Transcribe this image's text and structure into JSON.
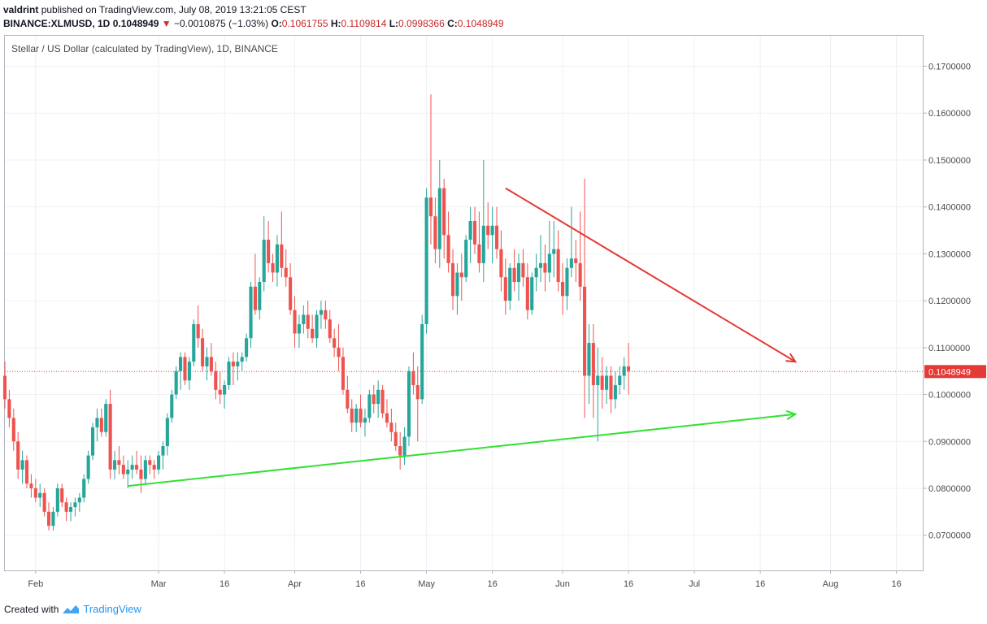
{
  "header": {
    "user": "valdrint",
    "published": "published on TradingView.com, July 08, 2019 13:21:05 CEST",
    "symbol": "BINANCE:XLMUSD, 1D",
    "last": "0.1048949",
    "change": "−0.0010875 (−1.03%)",
    "o_label": "O:",
    "o": "0.1061755",
    "h_label": "H:",
    "h": "0.1109814",
    "l_label": "L:",
    "l": "0.0998366",
    "c_label": "C:",
    "c": "0.1048949"
  },
  "footer": {
    "created": "Created with",
    "brand": "TradingView"
  },
  "colors": {
    "up": "#26a69a",
    "down": "#ef5350",
    "resistance": "#e53935",
    "support": "#33e033",
    "price_line": "#e53935"
  },
  "chart_data": {
    "type": "candlestick",
    "title": "Stellar / US Dollar (calculated by TradingView), 1D, BINANCE",
    "ylim": [
      0.0625,
      0.1765
    ],
    "yticks": [
      "0.0700000",
      "0.0800000",
      "0.0900000",
      "0.1000000",
      "0.1100000",
      "0.1200000",
      "0.1300000",
      "0.1400000",
      "0.1500000",
      "0.1600000",
      "0.1700000"
    ],
    "xlim": [
      "2019-01-25",
      "2019-08-22"
    ],
    "xticks": [
      {
        "date": "2019-02-01",
        "label": "Feb"
      },
      {
        "date": "2019-03-01",
        "label": "Mar"
      },
      {
        "date": "2019-03-16",
        "label": "16"
      },
      {
        "date": "2019-04-01",
        "label": "Apr"
      },
      {
        "date": "2019-04-16",
        "label": "16"
      },
      {
        "date": "2019-05-01",
        "label": "May"
      },
      {
        "date": "2019-05-16",
        "label": "16"
      },
      {
        "date": "2019-06-01",
        "label": "Jun"
      },
      {
        "date": "2019-06-16",
        "label": "16"
      },
      {
        "date": "2019-07-01",
        "label": "Jul"
      },
      {
        "date": "2019-07-16",
        "label": "16"
      },
      {
        "date": "2019-08-01",
        "label": "Aug"
      },
      {
        "date": "2019-08-16",
        "label": "16"
      }
    ],
    "candles_start": "2019-01-25",
    "candles": [
      [
        0.104,
        0.107,
        0.097,
        0.099
      ],
      [
        0.099,
        0.101,
        0.093,
        0.095
      ],
      [
        0.095,
        0.097,
        0.088,
        0.09
      ],
      [
        0.09,
        0.092,
        0.082,
        0.084
      ],
      [
        0.084,
        0.088,
        0.081,
        0.086
      ],
      [
        0.086,
        0.087,
        0.08,
        0.081
      ],
      [
        0.081,
        0.083,
        0.078,
        0.08
      ],
      [
        0.08,
        0.082,
        0.077,
        0.078
      ],
      [
        0.078,
        0.081,
        0.076,
        0.079
      ],
      [
        0.079,
        0.08,
        0.074,
        0.075
      ],
      [
        0.075,
        0.077,
        0.071,
        0.072
      ],
      [
        0.072,
        0.076,
        0.071,
        0.075
      ],
      [
        0.075,
        0.081,
        0.074,
        0.08
      ],
      [
        0.08,
        0.081,
        0.076,
        0.077
      ],
      [
        0.077,
        0.078,
        0.073,
        0.075
      ],
      [
        0.075,
        0.077,
        0.073,
        0.076
      ],
      [
        0.076,
        0.078,
        0.074,
        0.077
      ],
      [
        0.077,
        0.079,
        0.075,
        0.078
      ],
      [
        0.078,
        0.083,
        0.077,
        0.082
      ],
      [
        0.082,
        0.088,
        0.081,
        0.087
      ],
      [
        0.087,
        0.094,
        0.086,
        0.093
      ],
      [
        0.093,
        0.097,
        0.09,
        0.095
      ],
      [
        0.095,
        0.097,
        0.091,
        0.092
      ],
      [
        0.092,
        0.099,
        0.091,
        0.098
      ],
      [
        0.098,
        0.101,
        0.082,
        0.084
      ],
      [
        0.084,
        0.088,
        0.082,
        0.086
      ],
      [
        0.086,
        0.089,
        0.083,
        0.085
      ],
      [
        0.085,
        0.087,
        0.082,
        0.083
      ],
      [
        0.083,
        0.086,
        0.08,
        0.084
      ],
      [
        0.084,
        0.087,
        0.082,
        0.085
      ],
      [
        0.085,
        0.088,
        0.083,
        0.084
      ],
      [
        0.084,
        0.087,
        0.079,
        0.082
      ],
      [
        0.082,
        0.087,
        0.081,
        0.086
      ],
      [
        0.086,
        0.087,
        0.083,
        0.085
      ],
      [
        0.085,
        0.086,
        0.082,
        0.084
      ],
      [
        0.084,
        0.088,
        0.083,
        0.087
      ],
      [
        0.087,
        0.09,
        0.084,
        0.089
      ],
      [
        0.089,
        0.096,
        0.087,
        0.095
      ],
      [
        0.095,
        0.101,
        0.094,
        0.1
      ],
      [
        0.1,
        0.106,
        0.099,
        0.105
      ],
      [
        0.105,
        0.109,
        0.101,
        0.108
      ],
      [
        0.108,
        0.109,
        0.102,
        0.103
      ],
      [
        0.103,
        0.108,
        0.101,
        0.107
      ],
      [
        0.107,
        0.116,
        0.106,
        0.115
      ],
      [
        0.115,
        0.119,
        0.11,
        0.112
      ],
      [
        0.112,
        0.114,
        0.105,
        0.106
      ],
      [
        0.106,
        0.11,
        0.103,
        0.108
      ],
      [
        0.108,
        0.111,
        0.104,
        0.105
      ],
      [
        0.105,
        0.107,
        0.099,
        0.101
      ],
      [
        0.101,
        0.105,
        0.098,
        0.1
      ],
      [
        0.1,
        0.103,
        0.097,
        0.102
      ],
      [
        0.102,
        0.108,
        0.101,
        0.107
      ],
      [
        0.107,
        0.109,
        0.102,
        0.106
      ],
      [
        0.106,
        0.109,
        0.103,
        0.107
      ],
      [
        0.107,
        0.109,
        0.105,
        0.108
      ],
      [
        0.108,
        0.113,
        0.107,
        0.112
      ],
      [
        0.112,
        0.124,
        0.11,
        0.123
      ],
      [
        0.123,
        0.13,
        0.117,
        0.118
      ],
      [
        0.118,
        0.125,
        0.116,
        0.124
      ],
      [
        0.124,
        0.138,
        0.122,
        0.133
      ],
      [
        0.133,
        0.137,
        0.126,
        0.128
      ],
      [
        0.128,
        0.13,
        0.124,
        0.126
      ],
      [
        0.126,
        0.134,
        0.123,
        0.132
      ],
      [
        0.132,
        0.139,
        0.125,
        0.127
      ],
      [
        0.127,
        0.131,
        0.123,
        0.125
      ],
      [
        0.125,
        0.128,
        0.117,
        0.118
      ],
      [
        0.118,
        0.121,
        0.11,
        0.113
      ],
      [
        0.113,
        0.117,
        0.11,
        0.115
      ],
      [
        0.115,
        0.119,
        0.113,
        0.117
      ],
      [
        0.117,
        0.12,
        0.112,
        0.114
      ],
      [
        0.114,
        0.117,
        0.111,
        0.112
      ],
      [
        0.112,
        0.118,
        0.11,
        0.117
      ],
      [
        0.117,
        0.12,
        0.114,
        0.118
      ],
      [
        0.118,
        0.12,
        0.114,
        0.116
      ],
      [
        0.116,
        0.118,
        0.111,
        0.112
      ],
      [
        0.112,
        0.114,
        0.108,
        0.11
      ],
      [
        0.11,
        0.115,
        0.105,
        0.108
      ],
      [
        0.108,
        0.11,
        0.1,
        0.101
      ],
      [
        0.101,
        0.104,
        0.096,
        0.097
      ],
      [
        0.097,
        0.099,
        0.092,
        0.094
      ],
      [
        0.094,
        0.098,
        0.092,
        0.097
      ],
      [
        0.097,
        0.1,
        0.093,
        0.094
      ],
      [
        0.094,
        0.097,
        0.091,
        0.095
      ],
      [
        0.095,
        0.101,
        0.094,
        0.1
      ],
      [
        0.1,
        0.102,
        0.096,
        0.098
      ],
      [
        0.098,
        0.103,
        0.095,
        0.101
      ],
      [
        0.101,
        0.102,
        0.095,
        0.096
      ],
      [
        0.096,
        0.099,
        0.093,
        0.094
      ],
      [
        0.094,
        0.097,
        0.09,
        0.092
      ],
      [
        0.092,
        0.094,
        0.088,
        0.089
      ],
      [
        0.089,
        0.092,
        0.084,
        0.087
      ],
      [
        0.087,
        0.093,
        0.085,
        0.091
      ],
      [
        0.091,
        0.106,
        0.089,
        0.105
      ],
      [
        0.105,
        0.109,
        0.1,
        0.102
      ],
      [
        0.102,
        0.106,
        0.09,
        0.099
      ],
      [
        0.099,
        0.117,
        0.098,
        0.115
      ],
      [
        0.115,
        0.144,
        0.113,
        0.142
      ],
      [
        0.142,
        0.164,
        0.132,
        0.138
      ],
      [
        0.138,
        0.142,
        0.128,
        0.131
      ],
      [
        0.131,
        0.15,
        0.127,
        0.144
      ],
      [
        0.144,
        0.146,
        0.129,
        0.134
      ],
      [
        0.134,
        0.139,
        0.126,
        0.128
      ],
      [
        0.128,
        0.131,
        0.118,
        0.121
      ],
      [
        0.121,
        0.128,
        0.117,
        0.126
      ],
      [
        0.126,
        0.13,
        0.12,
        0.125
      ],
      [
        0.125,
        0.134,
        0.124,
        0.133
      ],
      [
        0.133,
        0.14,
        0.128,
        0.137
      ],
      [
        0.137,
        0.14,
        0.13,
        0.132
      ],
      [
        0.132,
        0.139,
        0.126,
        0.128
      ],
      [
        0.128,
        0.15,
        0.124,
        0.136
      ],
      [
        0.136,
        0.141,
        0.131,
        0.134
      ],
      [
        0.134,
        0.14,
        0.128,
        0.136
      ],
      [
        0.136,
        0.14,
        0.129,
        0.131
      ],
      [
        0.131,
        0.135,
        0.122,
        0.125
      ],
      [
        0.125,
        0.129,
        0.117,
        0.12
      ],
      [
        0.12,
        0.128,
        0.118,
        0.127
      ],
      [
        0.127,
        0.131,
        0.122,
        0.124
      ],
      [
        0.124,
        0.13,
        0.12,
        0.128
      ],
      [
        0.128,
        0.131,
        0.123,
        0.125
      ],
      [
        0.125,
        0.128,
        0.116,
        0.118
      ],
      [
        0.118,
        0.126,
        0.117,
        0.125
      ],
      [
        0.125,
        0.13,
        0.122,
        0.127
      ],
      [
        0.127,
        0.134,
        0.124,
        0.128
      ],
      [
        0.128,
        0.132,
        0.122,
        0.126
      ],
      [
        0.126,
        0.137,
        0.124,
        0.13
      ],
      [
        0.13,
        0.137,
        0.125,
        0.131
      ],
      [
        0.131,
        0.135,
        0.122,
        0.124
      ],
      [
        0.124,
        0.128,
        0.117,
        0.121
      ],
      [
        0.121,
        0.129,
        0.118,
        0.127
      ],
      [
        0.127,
        0.14,
        0.125,
        0.129
      ],
      [
        0.129,
        0.133,
        0.124,
        0.128
      ],
      [
        0.128,
        0.139,
        0.12,
        0.123
      ],
      [
        0.123,
        0.146,
        0.095,
        0.104
      ],
      [
        0.104,
        0.115,
        0.098,
        0.111
      ],
      [
        0.111,
        0.115,
        0.095,
        0.102
      ],
      [
        0.102,
        0.11,
        0.09,
        0.104
      ],
      [
        0.104,
        0.108,
        0.097,
        0.101
      ],
      [
        0.101,
        0.106,
        0.098,
        0.104
      ],
      [
        0.104,
        0.106,
        0.096,
        0.099
      ],
      [
        0.099,
        0.105,
        0.097,
        0.102
      ],
      [
        0.102,
        0.106,
        0.1,
        0.104
      ],
      [
        0.104,
        0.108,
        0.101,
        0.106
      ],
      [
        0.106,
        0.111,
        0.1,
        0.105
      ]
    ],
    "last_price": "0.1048949",
    "trendlines": [
      {
        "name": "resistance",
        "from": [
          "2019-05-19",
          0.144
        ],
        "to": [
          "2019-07-24",
          0.107
        ],
        "arrow": true
      },
      {
        "name": "support",
        "from": [
          "2019-02-22",
          0.0805
        ],
        "to": [
          "2019-07-24",
          0.0958
        ],
        "arrow": true
      }
    ],
    "grid": true
  }
}
